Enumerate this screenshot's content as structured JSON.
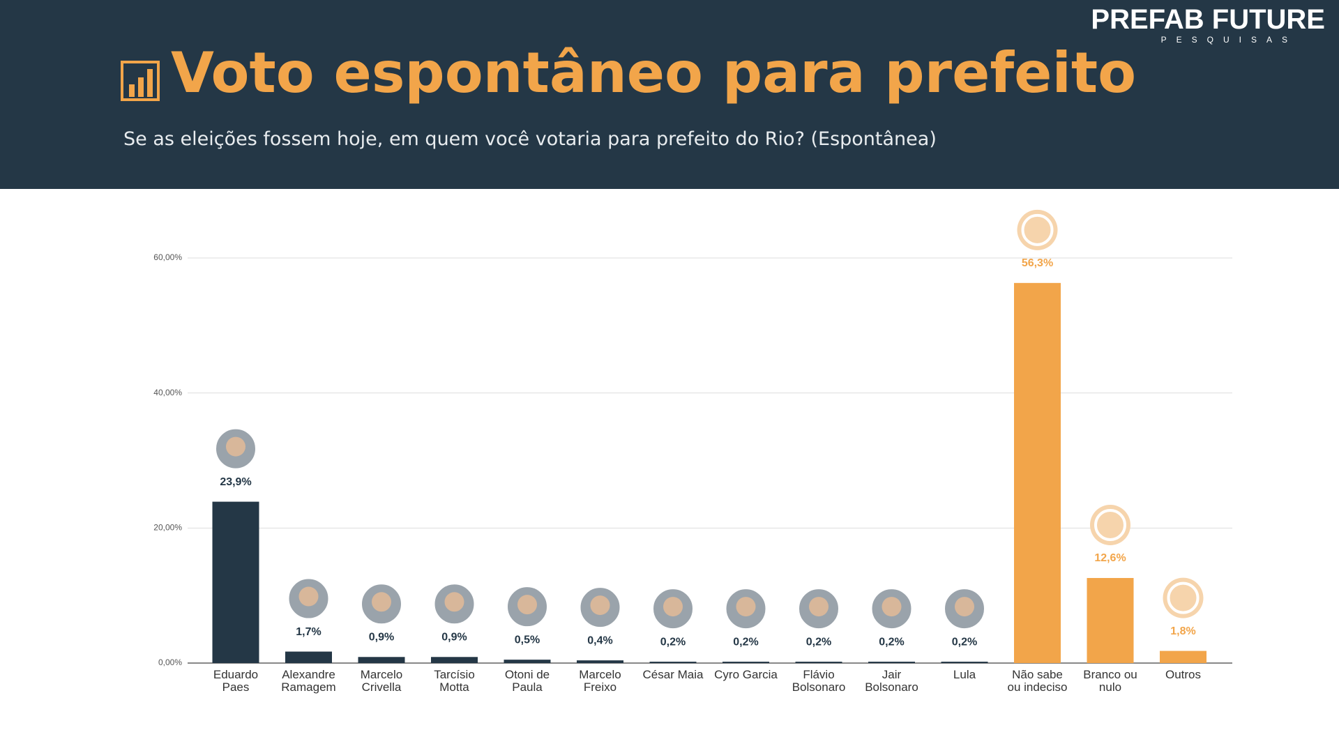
{
  "header": {
    "logo": "PREFAB FUTURE",
    "logo_sub": "PESQUISAS",
    "title": "Voto espontâneo para prefeito",
    "subtitle": "Se as eleições fossem hoje, em quem você votaria para prefeito do Rio? (Espontânea)"
  },
  "chart_data": {
    "type": "bar",
    "categories": [
      "Eduardo\nPaes",
      "Alexandre\nRamagem",
      "Marcelo\nCrivella",
      "Tarcísio\nMotta",
      "Otoni de\nPaula",
      "Marcelo\nFreixo",
      "César Maia",
      "Cyro Garcia",
      "Flávio\nBolsonaro",
      "Jair\nBolsonaro",
      "Lula",
      "Não sabe\nou indeciso",
      "Branco ou\nnulo",
      "Outros"
    ],
    "values": [
      23.9,
      1.7,
      0.9,
      0.9,
      0.5,
      0.4,
      0.2,
      0.2,
      0.2,
      0.2,
      0.2,
      56.3,
      12.6,
      1.8
    ],
    "value_labels": [
      "23,9%",
      "1,7%",
      "0,9%",
      "0,9%",
      "0,5%",
      "0,4%",
      "0,2%",
      "0,2%",
      "0,2%",
      "0,2%",
      "0,2%",
      "56,3%",
      "12,6%",
      "1,8%"
    ],
    "colors": [
      "#243746",
      "#243746",
      "#243746",
      "#243746",
      "#243746",
      "#243746",
      "#243746",
      "#243746",
      "#243746",
      "#243746",
      "#243746",
      "#f2a54a",
      "#f2a54a",
      "#f2a54a"
    ],
    "ylim": [
      0,
      60
    ],
    "yticks": [
      {
        "value": 0,
        "label": "0,00%"
      },
      {
        "value": 20,
        "label": "20,00%"
      },
      {
        "value": 40,
        "label": "40,00%"
      },
      {
        "value": 60,
        "label": "60,00%"
      }
    ],
    "grid": true
  }
}
